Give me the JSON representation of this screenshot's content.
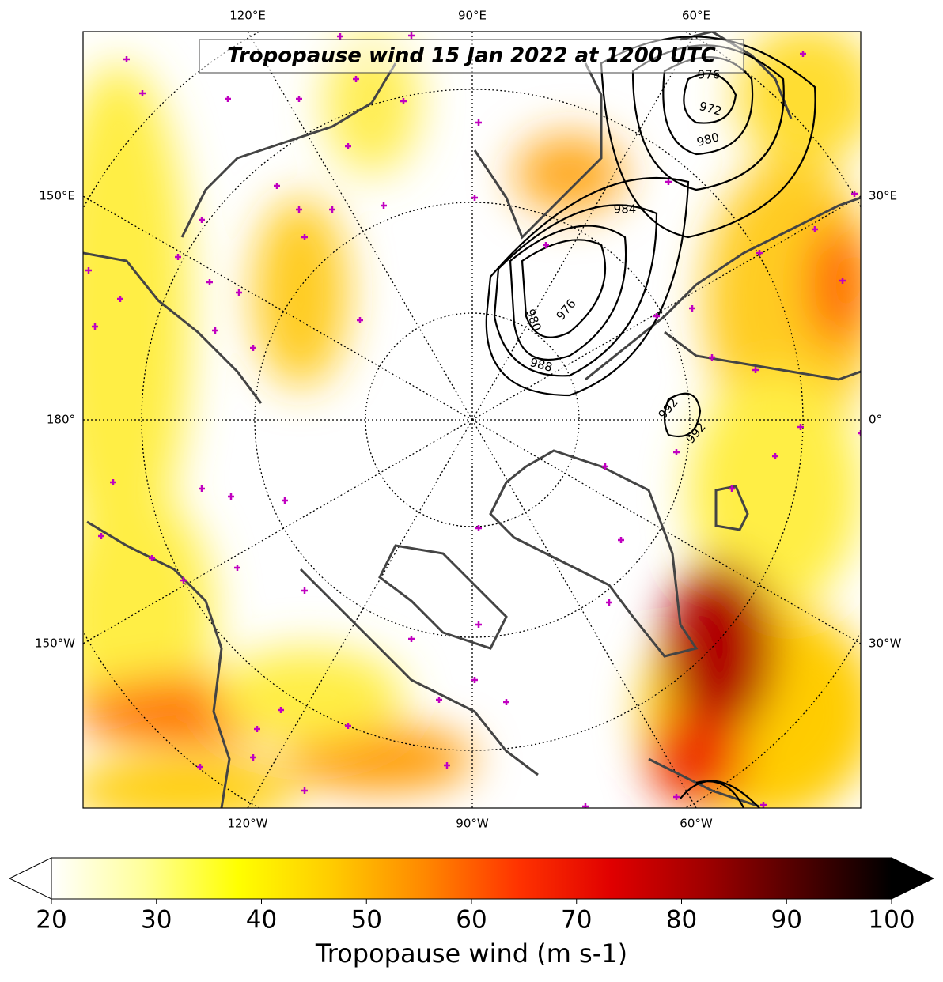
{
  "map": {
    "title": "Tropopause wind 15 Jan 2022 at 1200 UTC",
    "longitude_labels": {
      "top": [
        "120°E",
        "90°E",
        "60°E"
      ],
      "left": [
        "150°E",
        "180°",
        "150°W"
      ],
      "right": [
        "30°E",
        "0°",
        "30°W"
      ],
      "bottom": [
        "120°W",
        "90°W",
        "60°W"
      ]
    },
    "contour_labels": [
      "976",
      "972",
      "980",
      "984",
      "976",
      "980",
      "988",
      "992",
      "992"
    ]
  },
  "colorbar": {
    "label": "Tropopause wind (m s-1)",
    "lim": [
      20,
      100
    ],
    "ticks": [
      20,
      30,
      40,
      50,
      60,
      70,
      80,
      90,
      100
    ],
    "colors": [
      "#ffffff",
      "#ffff99",
      "#ffff00",
      "#ffcc00",
      "#ff8800",
      "#ff3300",
      "#e00000",
      "#a00000",
      "#500000",
      "#000000"
    ]
  }
}
